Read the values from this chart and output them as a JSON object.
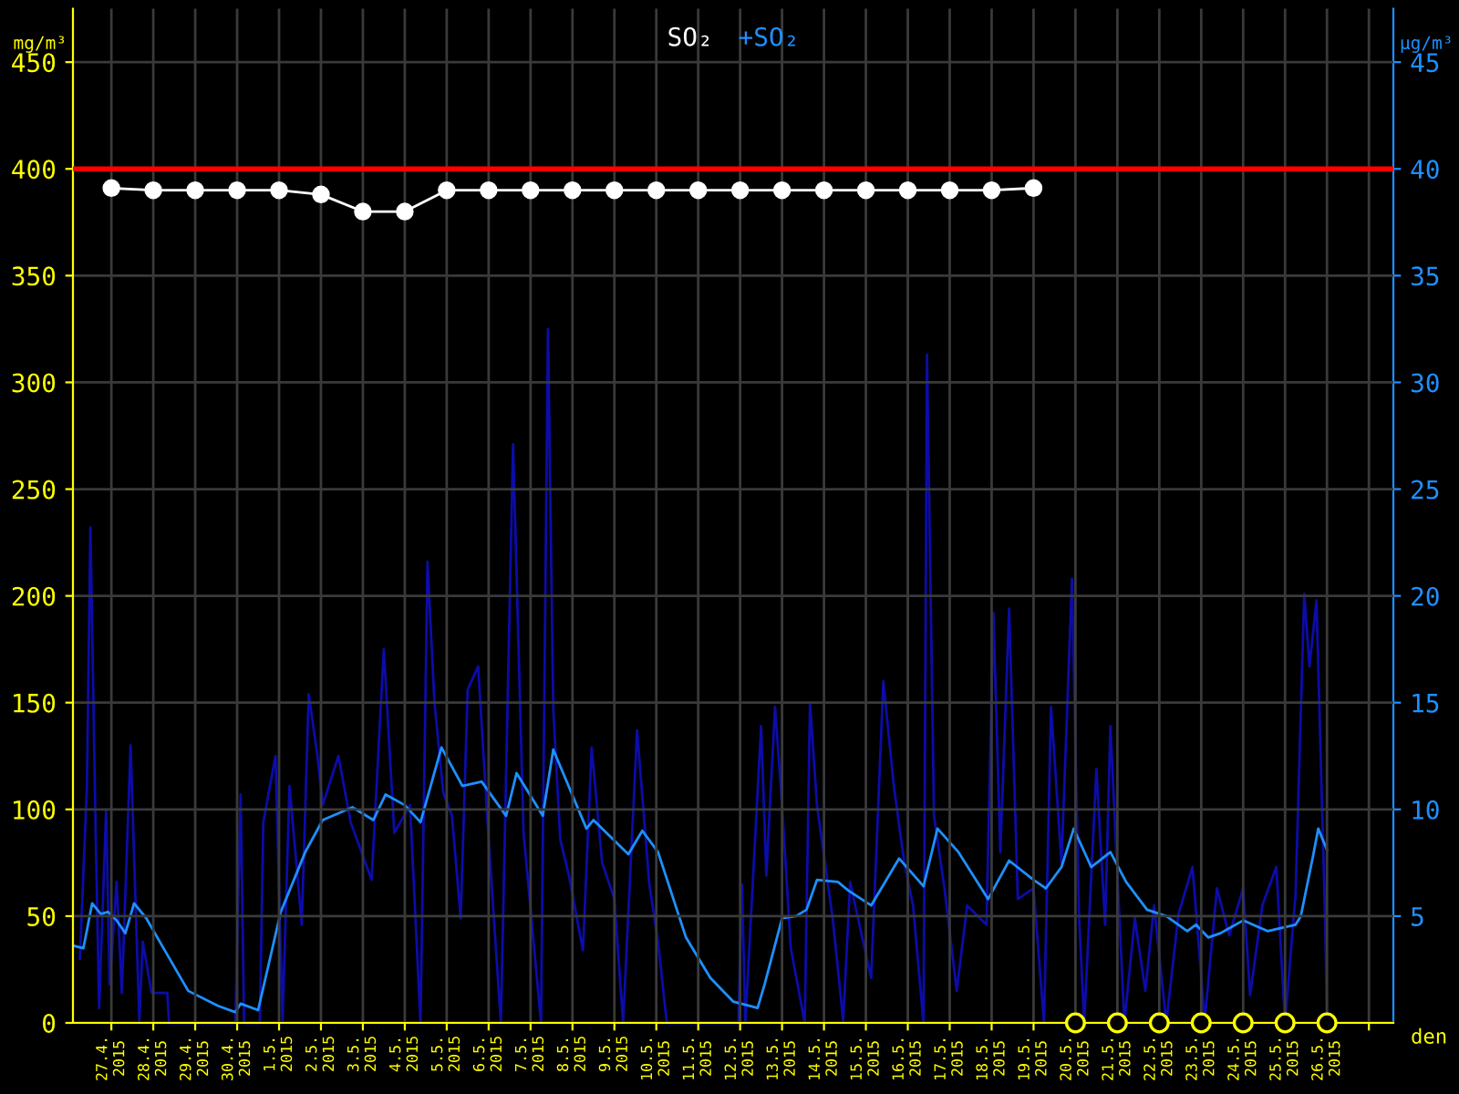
{
  "chart_data": {
    "type": "line",
    "xlabel": "den",
    "ylabel": "mg/m³",
    "y2label": "µg/m³",
    "xlim": [
      "2015-04-26T02:00",
      "2015-05-27T14:00"
    ],
    "ylim": [
      0,
      475
    ],
    "yticks": [
      0,
      50,
      100,
      150,
      200,
      250,
      300,
      350,
      400,
      450
    ],
    "y2lim": [
      0,
      47.5
    ],
    "y2ticks": [
      5,
      10,
      15,
      20,
      25,
      30,
      35,
      40,
      45
    ],
    "xticks": [
      {
        "value": "2015-04-27T00:00",
        "label": "27.4.\n2015"
      },
      {
        "value": "2015-04-28T00:00",
        "label": "28.4.\n2015"
      },
      {
        "value": "2015-04-29T00:00",
        "label": "29.4.\n2015"
      },
      {
        "value": "2015-04-30T00:00",
        "label": "30.4.\n2015"
      },
      {
        "value": "2015-05-01T00:00",
        "label": "1.5.\n2015"
      },
      {
        "value": "2015-05-02T00:00",
        "label": "2.5.\n2015"
      },
      {
        "value": "2015-05-03T00:00",
        "label": "3.5.\n2015"
      },
      {
        "value": "2015-05-04T00:00",
        "label": "4.5.\n2015"
      },
      {
        "value": "2015-05-05T00:00",
        "label": "5.5.\n2015"
      },
      {
        "value": "2015-05-06T00:00",
        "label": "6.5.\n2015"
      },
      {
        "value": "2015-05-07T00:00",
        "label": "7.5.\n2015"
      },
      {
        "value": "2015-05-08T00:00",
        "label": "8.5.\n2015"
      },
      {
        "value": "2015-05-09T00:00",
        "label": "9.5.\n2015"
      },
      {
        "value": "2015-05-10T00:00",
        "label": "10.5.\n2015"
      },
      {
        "value": "2015-05-11T00:00",
        "label": "11.5.\n2015"
      },
      {
        "value": "2015-05-12T00:00",
        "label": "12.5.\n2015"
      },
      {
        "value": "2015-05-13T00:00",
        "label": "13.5.\n2015"
      },
      {
        "value": "2015-05-14T00:00",
        "label": "14.5.\n2015"
      },
      {
        "value": "2015-05-15T00:00",
        "label": "15.5.\n2015"
      },
      {
        "value": "2015-05-16T00:00",
        "label": "16.5.\n2015"
      },
      {
        "value": "2015-05-17T00:00",
        "label": "17.5.\n2015"
      },
      {
        "value": "2015-05-18T00:00",
        "label": "18.5.\n2015"
      },
      {
        "value": "2015-05-19T00:00",
        "label": "19.5.\n2015"
      },
      {
        "value": "2015-05-20T00:00",
        "label": "20.5.\n2015"
      },
      {
        "value": "2015-05-21T00:00",
        "label": "21.5.\n2015"
      },
      {
        "value": "2015-05-22T00:00",
        "label": "22.5.\n2015"
      },
      {
        "value": "2015-05-23T00:00",
        "label": "23.5.\n2015"
      },
      {
        "value": "2015-05-24T00:00",
        "label": "24.5.\n2015"
      },
      {
        "value": "2015-05-25T00:00",
        "label": "25.5.\n2015"
      },
      {
        "value": "2015-05-26T00:00",
        "label": "26.5.\n2015"
      },
      {
        "value": "2015-05-27T00:00",
        "label": null
      }
    ],
    "grid": true,
    "legend": "top",
    "line_style": "solid",
    "ref_lines": [
      {
        "axis": "y",
        "value": 400,
        "label": null,
        "color": "#ff0000"
      }
    ],
    "series": [
      {
        "name": "SO₂",
        "color": "#ffffff",
        "marker": "circle",
        "x": [
          "2015-04-27T00:00",
          "2015-04-28T00:00",
          "2015-04-29T00:00",
          "2015-04-30T00:00",
          "2015-05-01T00:00",
          "2015-05-02T00:00",
          "2015-05-03T00:00",
          "2015-05-04T00:00",
          "2015-05-05T00:00",
          "2015-05-06T00:00",
          "2015-05-07T00:00",
          "2015-05-08T00:00",
          "2015-05-09T00:00",
          "2015-05-10T00:00",
          "2015-05-11T00:00",
          "2015-05-12T00:00",
          "2015-05-13T00:00",
          "2015-05-14T00:00",
          "2015-05-15T00:00",
          "2015-05-16T00:00",
          "2015-05-17T00:00",
          "2015-05-18T00:00",
          "2015-05-19T00:00"
        ],
        "values": [
          391,
          390,
          390,
          390,
          390,
          388,
          380,
          380,
          390,
          390,
          390,
          390,
          390,
          390,
          390,
          390,
          390,
          390,
          390,
          390,
          390,
          390,
          391
        ]
      },
      {
        "color": "#0c0ca8",
        "axis": "y2",
        "x": [
          "2015-04-26T06:00",
          "2015-04-26T10:00",
          "2015-04-26T12:00",
          "2015-04-26T15:00",
          "2015-04-26T17:00",
          "2015-04-26T21:00",
          "2015-04-26T23:00",
          "2015-04-27T03:00",
          "2015-04-27T06:00",
          "2015-04-27T11:00",
          "2015-04-27T16:00",
          "2015-04-27T18:00",
          "2015-04-27T23:00",
          "2015-04-28T08:00",
          "2015-04-28T09:00",
          "2015-04-29T23:00",
          "2015-04-30T02:00",
          "2015-04-30T04:00",
          "2015-04-30T13:00",
          "2015-04-30T15:00",
          "2015-04-30T22:00",
          "2015-05-01T02:00",
          "2015-05-01T06:00",
          "2015-05-01T13:00",
          "2015-05-01T17:00",
          "2015-05-01T22:00",
          "2015-05-02T01:00",
          "2015-05-02T10:00",
          "2015-05-02T17:00",
          "2015-05-03T05:00",
          "2015-05-03T12:00",
          "2015-05-03T18:00",
          "2015-05-04T03:00",
          "2015-05-04T09:00",
          "2015-05-04T13:00",
          "2015-05-04T17:00",
          "2015-05-04T22:00",
          "2015-05-05T03:00",
          "2015-05-05T08:00",
          "2015-05-05T12:00",
          "2015-05-05T18:00",
          "2015-05-06T00:00",
          "2015-05-06T07:00",
          "2015-05-06T14:00",
          "2015-05-06T20:00",
          "2015-05-07T06:00",
          "2015-05-07T10:00",
          "2015-05-07T13:00",
          "2015-05-07T17:00",
          "2015-05-07T22:00",
          "2015-05-08T06:00",
          "2015-05-08T11:00",
          "2015-05-08T17:00",
          "2015-05-09T00:00",
          "2015-05-09T05:00",
          "2015-05-09T13:00",
          "2015-05-09T20:00",
          "2015-05-10T01:00",
          "2015-05-10T06:00",
          "2015-05-11T23:00",
          "2015-05-12T01:00",
          "2015-05-12T03:00",
          "2015-05-12T12:00",
          "2015-05-12T15:00",
          "2015-05-12T20:00",
          "2015-05-13T00:00",
          "2015-05-13T05:00",
          "2015-05-13T13:00",
          "2015-05-13T16:00",
          "2015-05-13T20:00",
          "2015-05-14T05:00",
          "2015-05-14T11:00",
          "2015-05-14T15:00",
          "2015-05-15T03:00",
          "2015-05-15T10:00",
          "2015-05-15T16:00",
          "2015-05-15T22:00",
          "2015-05-16T03:00",
          "2015-05-16T09:00",
          "2015-05-16T11:00",
          "2015-05-16T15:00",
          "2015-05-16T21:00",
          "2015-05-17T04:00",
          "2015-05-17T10:00",
          "2015-05-17T21:00",
          "2015-05-18T01:00",
          "2015-05-18T05:00",
          "2015-05-18T10:00",
          "2015-05-18T15:00",
          "2015-05-19T00:00",
          "2015-05-19T06:00",
          "2015-05-19T10:00",
          "2015-05-19T16:00",
          "2015-05-19T22:00",
          "2015-05-20T02:00",
          "2015-05-20T05:00",
          "2015-05-20T12:00",
          "2015-05-20T17:00",
          "2015-05-20T20:00",
          "2015-05-21T04:00",
          "2015-05-21T10:00",
          "2015-05-21T16:00",
          "2015-05-21T21:00",
          "2015-05-22T04:00",
          "2015-05-22T11:00",
          "2015-05-22T19:00",
          "2015-05-23T02:00",
          "2015-05-23T09:00",
          "2015-05-23T16:00",
          "2015-05-24T00:00",
          "2015-05-24T04:00",
          "2015-05-24T11:00",
          "2015-05-24T19:00",
          "2015-05-25T00:00",
          "2015-05-25T06:00",
          "2015-05-25T11:00",
          "2015-05-25T14:00",
          "2015-05-25T18:00",
          "2015-05-25T23:00",
          "2015-05-26T00:00"
        ],
        "values": [
          3.0,
          11.1,
          23.2,
          8.9,
          0.7,
          10.0,
          1.8,
          6.6,
          1.4,
          13.0,
          0.1,
          3.8,
          1.4,
          1.4,
          0,
          0,
          10.7,
          0,
          0,
          9.4,
          12.5,
          0.1,
          11.1,
          4.6,
          15.4,
          12.5,
          10.2,
          12.5,
          9.4,
          6.7,
          17.5,
          8.9,
          10.2,
          0,
          21.6,
          15.0,
          10.8,
          9.7,
          4.9,
          15.6,
          16.7,
          8.6,
          0,
          27.1,
          8.9,
          0,
          32.5,
          14.7,
          8.6,
          6.9,
          3.4,
          12.9,
          7.5,
          5.8,
          0,
          13.7,
          6.5,
          3.8,
          0,
          0,
          6.5,
          0,
          13.9,
          6.9,
          14.8,
          10.2,
          3.5,
          0,
          15.0,
          10.2,
          4.9,
          0.1,
          6.6,
          2.1,
          16.0,
          11.1,
          7.5,
          5.5,
          0,
          31.3,
          9.7,
          6.3,
          1.5,
          5.5,
          4.6,
          19.2,
          8.0,
          19.4,
          5.8,
          6.3,
          0,
          14.8,
          7.5,
          20.8,
          5.1,
          0,
          11.9,
          4.6,
          13.9,
          0,
          4.9,
          1.5,
          5.5,
          0,
          5.1,
          7.3,
          0.1,
          6.3,
          4.1,
          6.3,
          1.3,
          5.5,
          7.3,
          0,
          6.0,
          20.1,
          16.7,
          19.8,
          4.6,
          0
        ]
      },
      {
        "name": "+SO₂",
        "color": "#1e90ff",
        "axis": "y2",
        "x": [
          "2015-04-26T03:00",
          "2015-04-26T08:00",
          "2015-04-26T13:00",
          "2015-04-26T18:00",
          "2015-04-26T22:00",
          "2015-04-27T03:00",
          "2015-04-27T08:00",
          "2015-04-27T13:00",
          "2015-04-27T20:00",
          "2015-04-28T03:00",
          "2015-04-28T20:00",
          "2015-04-29T13:00",
          "2015-04-29T23:00",
          "2015-04-30T02:00",
          "2015-04-30T12:00",
          "2015-05-01T01:00",
          "2015-05-01T15:00",
          "2015-05-02T01:00",
          "2015-05-02T18:00",
          "2015-05-03T06:00",
          "2015-05-03T13:00",
          "2015-05-04T00:00",
          "2015-05-04T09:00",
          "2015-05-04T21:00",
          "2015-05-05T09:00",
          "2015-05-05T20:00",
          "2015-05-06T10:00",
          "2015-05-06T16:00",
          "2015-05-07T07:00",
          "2015-05-07T13:00",
          "2015-05-08T08:00",
          "2015-05-08T12:00",
          "2015-05-09T08:00",
          "2015-05-09T16:00",
          "2015-05-10T01:00",
          "2015-05-10T17:00",
          "2015-05-11T07:00",
          "2015-05-11T20:00",
          "2015-05-12T10:00",
          "2015-05-12T14:00",
          "2015-05-13T00:00",
          "2015-05-13T08:00",
          "2015-05-13T14:00",
          "2015-05-13T20:00",
          "2015-05-14T08:00",
          "2015-05-14T14:00",
          "2015-05-15T03:00",
          "2015-05-15T19:00",
          "2015-05-16T09:00",
          "2015-05-16T17:00",
          "2015-05-17T05:00",
          "2015-05-17T22:00",
          "2015-05-18T10:00",
          "2015-05-19T00:00",
          "2015-05-19T07:00",
          "2015-05-19T16:00",
          "2015-05-19T23:00",
          "2015-05-20T09:00",
          "2015-05-20T20:00",
          "2015-05-21T05:00",
          "2015-05-21T17:00",
          "2015-05-22T04:00",
          "2015-05-22T16:00",
          "2015-05-22T21:00",
          "2015-05-23T04:00",
          "2015-05-23T11:00",
          "2015-05-24T00:00",
          "2015-05-24T14:00",
          "2015-05-25T06:00",
          "2015-05-25T09:00",
          "2015-05-25T16:00",
          "2015-05-25T19:00",
          "2015-05-26T00:00"
        ],
        "values": [
          3.6,
          3.5,
          5.6,
          5.1,
          5.2,
          4.8,
          4.2,
          5.6,
          4.9,
          3.9,
          1.5,
          0.8,
          0.5,
          0.9,
          0.6,
          5.2,
          8.0,
          9.5,
          10.1,
          9.5,
          10.7,
          10.2,
          9.4,
          12.9,
          11.1,
          11.3,
          9.7,
          11.7,
          9.7,
          12.8,
          9.1,
          9.5,
          7.9,
          9.0,
          8.0,
          4.0,
          2.1,
          1.0,
          0.7,
          1.8,
          4.9,
          5.0,
          5.3,
          6.7,
          6.6,
          6.2,
          5.5,
          7.7,
          6.4,
          9.1,
          8.0,
          5.8,
          7.6,
          6.7,
          6.3,
          7.3,
          9.1,
          7.3,
          8.0,
          6.6,
          5.3,
          5.0,
          4.3,
          4.6,
          4.0,
          4.2,
          4.8,
          4.3,
          4.6,
          5.0,
          7.8,
          9.1,
          8.1
        ]
      },
      {
        "type": "scatter",
        "color": "#ffff00",
        "marker": "circle",
        "x": [
          "2015-05-20T00:00",
          "2015-05-21T00:00",
          "2015-05-22T00:00",
          "2015-05-23T00:00",
          "2015-05-24T00:00",
          "2015-05-25T00:00",
          "2015-05-26T00:00"
        ],
        "values": [
          0,
          0,
          0,
          0,
          0,
          0,
          0
        ]
      }
    ]
  }
}
